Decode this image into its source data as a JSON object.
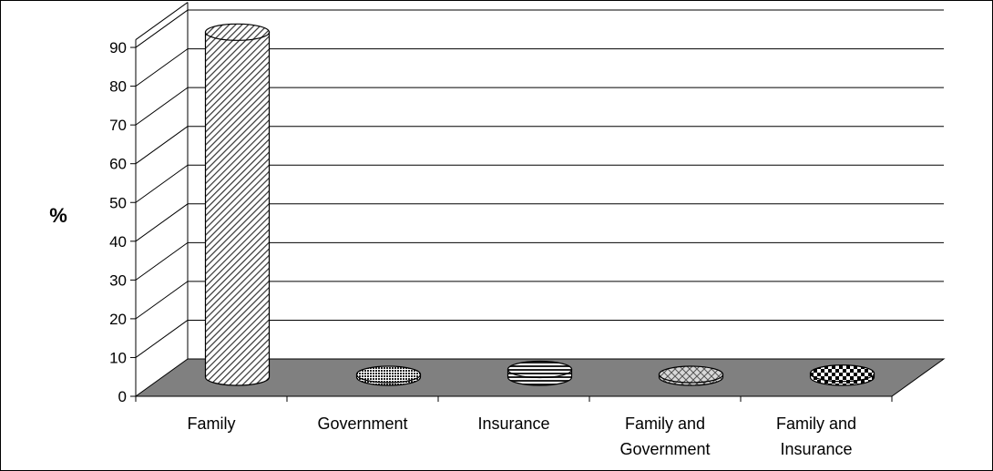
{
  "chart_data": {
    "type": "bar",
    "style": "3d-cylinder",
    "categories": [
      [
        "Family"
      ],
      [
        "Government"
      ],
      [
        "Insurance"
      ],
      [
        "Family and",
        "Government"
      ],
      [
        "Family  and",
        "Insurance"
      ]
    ],
    "values": [
      89,
      0.5,
      2,
      0.5,
      1
    ],
    "ylabel": "%",
    "ylim": [
      0,
      90
    ],
    "yticks": [
      "0",
      "10",
      "20",
      "30",
      "40",
      "50",
      "60",
      "70",
      "80",
      "90"
    ],
    "grid": true,
    "legend": "none",
    "floor_color": "#808080",
    "bar_patterns": [
      "diagonal-hatch",
      "dense-dots",
      "horizontal-stripes",
      "diagonal-cross",
      "checkerboard"
    ]
  }
}
